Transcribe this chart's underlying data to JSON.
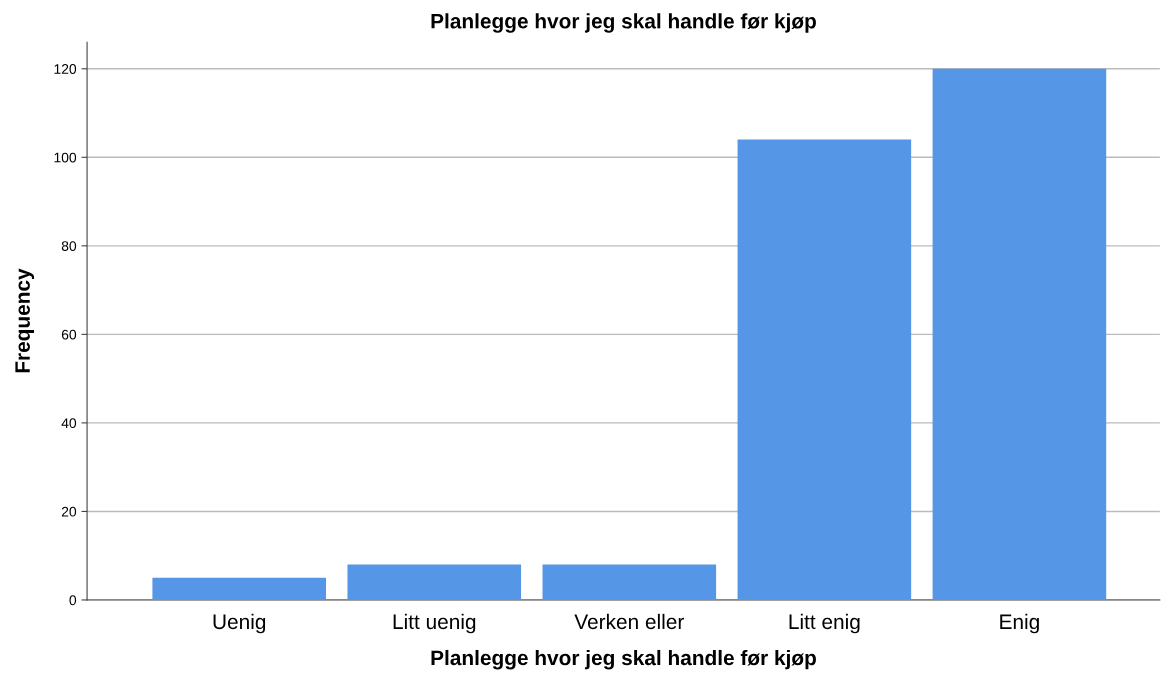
{
  "chart_data": {
    "type": "bar",
    "title": "Planlegge hvor jeg skal handle før kjøp",
    "xlabel": "Planlegge hvor jeg skal handle før kjøp",
    "ylabel": "Frequency",
    "categories": [
      "Uenig",
      "Litt uenig",
      "Verken eller",
      "Litt enig",
      "Enig"
    ],
    "values": [
      5,
      8,
      8,
      104,
      120
    ],
    "color": "#5596e6",
    "ylim": [
      0,
      126
    ],
    "yticks": [
      0,
      20,
      40,
      60,
      80,
      100,
      120
    ],
    "grid": "y"
  }
}
